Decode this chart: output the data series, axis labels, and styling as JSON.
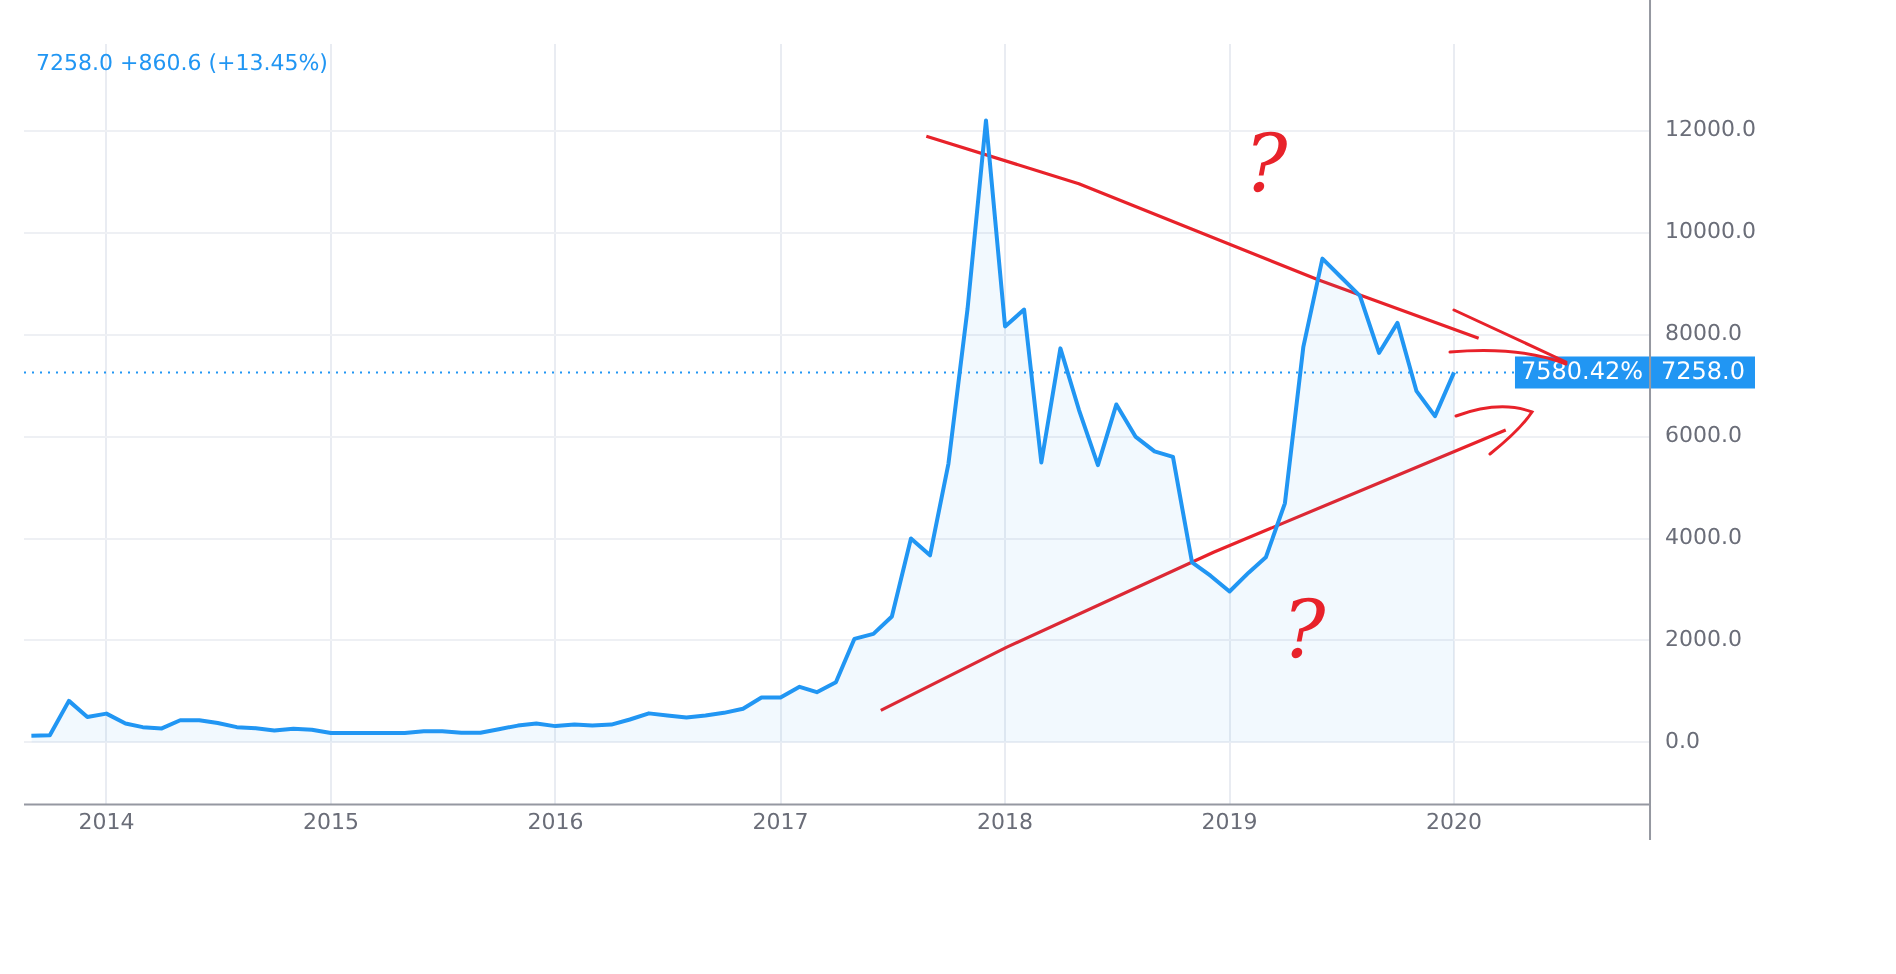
{
  "chart_data": {
    "type": "area",
    "annotations": [
      "7258.0 +860.6 (+13.45%)",
      "7580.42%",
      "?",
      "?"
    ],
    "x": [
      "2013-09",
      "2013-10",
      "2013-11",
      "2013-12",
      "2014-01",
      "2014-02",
      "2014-03",
      "2014-04",
      "2014-05",
      "2014-06",
      "2014-07",
      "2014-08",
      "2014-09",
      "2014-10",
      "2014-11",
      "2014-12",
      "2015-01",
      "2015-02",
      "2015-03",
      "2015-04",
      "2015-05",
      "2015-06",
      "2015-07",
      "2015-08",
      "2015-09",
      "2015-10",
      "2015-11",
      "2015-12",
      "2016-01",
      "2016-02",
      "2016-03",
      "2016-04",
      "2016-05",
      "2016-06",
      "2016-07",
      "2016-08",
      "2016-09",
      "2016-10",
      "2016-11",
      "2016-12",
      "2017-01",
      "2017-02",
      "2017-03",
      "2017-04",
      "2017-05",
      "2017-06",
      "2017-07",
      "2017-08",
      "2017-09",
      "2017-10",
      "2017-11",
      "2017-12",
      "2018-01",
      "2018-02",
      "2018-03",
      "2018-04",
      "2018-05",
      "2018-06",
      "2018-07",
      "2018-08",
      "2018-09",
      "2018-10",
      "2018-11",
      "2018-12",
      "2019-01",
      "2019-02",
      "2019-03",
      "2019-04",
      "2019-05",
      "2019-06",
      "2019-07",
      "2019-08",
      "2019-09",
      "2019-10",
      "2019-11",
      "2019-12",
      "2020-01"
    ],
    "series": [
      {
        "color": "#2196f3",
        "values": [
          130,
          140,
          815,
          500,
          565,
          370,
          300,
          275,
          435,
          435,
          380,
          300,
          280,
          235,
          270,
          250,
          185,
          185,
          185,
          185,
          185,
          220,
          220,
          190,
          190,
          260,
          330,
          370,
          320,
          350,
          330,
          350,
          450,
          570,
          530,
          490,
          530,
          580,
          660,
          880,
          880,
          1090,
          985,
          1180,
          2030,
          2130,
          2470,
          4000,
          3670,
          5470,
          8500,
          12200,
          8160,
          8490,
          5490,
          7730,
          6530,
          5440,
          6630,
          6000,
          5710,
          5600,
          3530,
          3270,
          2960,
          3330,
          3630,
          4690,
          7760,
          9490,
          9130,
          8760,
          7640,
          8230,
          6890,
          6400,
          7258
        ]
      },
      {
        "type": "line",
        "color": "#e8222a",
        "x": [
          "2017-08-26",
          "2018-05-01",
          "2019-05-26",
          "2020-02-10"
        ],
        "values": [
          11890,
          10960,
          9070,
          7930
        ]
      },
      {
        "type": "line",
        "color": "#e8222a",
        "x": [
          "2017-06-13",
          "2018-01-04",
          "2018-12-06",
          "2020-03-25"
        ],
        "values": [
          630,
          1870,
          3730,
          6130
        ]
      }
    ],
    "xlim": [
      "2013-08-20",
      "2020-11-13"
    ],
    "xticks": [
      "2014",
      "2015",
      "2016",
      "2017",
      "2018",
      "2019",
      "2020"
    ],
    "ylim": [
      -1200,
      13700
    ],
    "yticks": [
      {
        "value": 0,
        "label": "0.0"
      },
      {
        "value": 2000,
        "label": "2000.0"
      },
      {
        "value": 4000,
        "label": "4000.0"
      },
      {
        "value": 6000,
        "label": "6000.0"
      },
      {
        "value": 8000,
        "label": "8000.0"
      },
      {
        "value": 10000,
        "label": "10000.0"
      },
      {
        "value": 12000,
        "label": "12000.0"
      }
    ],
    "ref_lines": [
      {
        "axis": "y",
        "value": 7258,
        "label": "7258.0",
        "color": "#2196f3",
        "line_style": "dotted"
      }
    ],
    "grid": true,
    "legend": false,
    "marker": "none"
  }
}
